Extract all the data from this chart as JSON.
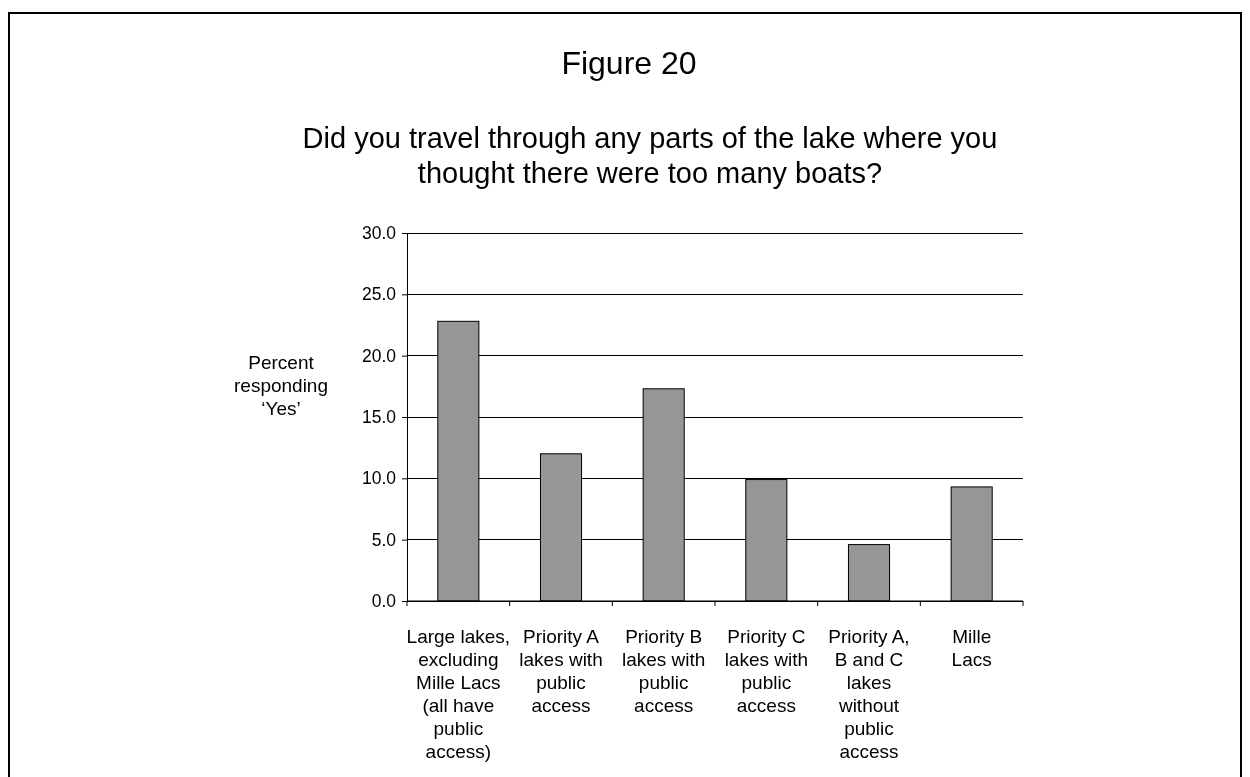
{
  "chart_data": {
    "type": "bar",
    "title": "Figure 20",
    "subtitle": "Did you travel through any parts of the lake where you\nthought there were too many boats?",
    "ylabel": "Percent\nresponding\n‘Yes’",
    "categories": [
      "Large lakes,\nexcluding\nMille Lacs\n(all have\npublic\naccess)",
      "Priority A\nlakes with\npublic\naccess",
      "Priority B\nlakes with\npublic\naccess",
      "Priority C\nlakes with\npublic\naccess",
      "Priority A,\nB and C\nlakes\nwithout\npublic\naccess",
      "Mille\nLacs"
    ],
    "values": [
      22.8,
      12.0,
      17.3,
      9.9,
      4.6,
      9.3
    ],
    "color": "#969696",
    "ylim": [
      0,
      30
    ],
    "yticks": [
      {
        "value": 0,
        "label": "0.0"
      },
      {
        "value": 5,
        "label": "5.0"
      },
      {
        "value": 10,
        "label": "10.0"
      },
      {
        "value": 15,
        "label": "15.0"
      },
      {
        "value": 20,
        "label": "20.0"
      },
      {
        "value": 25,
        "label": "25.0"
      },
      {
        "value": 30,
        "label": "30.0"
      }
    ],
    "grid": "y"
  }
}
